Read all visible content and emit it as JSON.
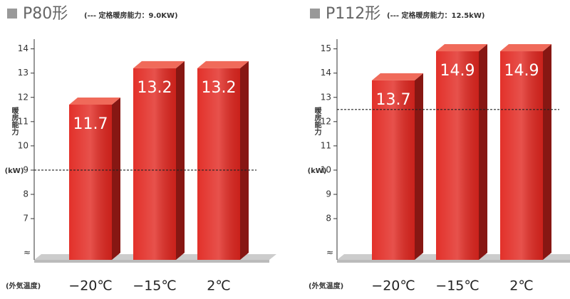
{
  "chart_data": [
    {
      "type": "bar",
      "title": "P80形",
      "subtitle": "(--- 定格暖房能力：9.0KW)",
      "y_label": "暖房能力",
      "y_unit": "(kW)",
      "x_label": "(外気温度)",
      "categories": [
        "−20℃",
        "−15℃",
        "2℃"
      ],
      "values": [
        11.7,
        13.2,
        13.2
      ],
      "color": "#e1261f",
      "ylim": [
        5.3,
        14.4
      ],
      "yticks": [
        7,
        8,
        9,
        10,
        11,
        12,
        13,
        14
      ],
      "reference_line": 9.0
    },
    {
      "type": "bar",
      "title": "P112形",
      "subtitle": "(--- 定格暖房能力：12.5kW)",
      "y_label": "暖房能力",
      "y_unit": "(kW)",
      "x_label": "(外気温度)",
      "categories": [
        "−20℃",
        "−15℃",
        "2℃"
      ],
      "values": [
        13.7,
        14.9,
        14.9
      ],
      "color": "#e1261f",
      "ylim": [
        6.3,
        15.4
      ],
      "yticks": [
        8,
        9,
        10,
        11,
        12,
        13,
        14,
        15
      ],
      "reference_line": 12.5
    }
  ]
}
